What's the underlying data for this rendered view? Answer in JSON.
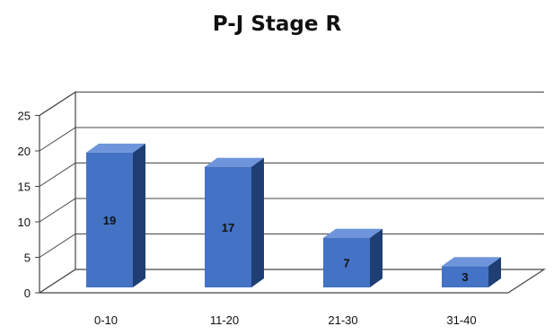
{
  "chart_data": {
    "type": "bar",
    "title": "P-J Stage R",
    "xlabel": "",
    "ylabel": "",
    "categories": [
      "0-10",
      "11-20",
      "21-30",
      "31-40"
    ],
    "values": [
      19,
      17,
      7,
      3
    ],
    "data_labels": [
      "19",
      "17",
      "7",
      "3"
    ],
    "ylim": [
      0,
      25
    ],
    "yticks": [
      "0",
      "5",
      "10",
      "15",
      "20",
      "25"
    ],
    "grid": true,
    "legend": "none",
    "style": "3d-column",
    "colors": {
      "front": "#4472c4",
      "side": "#1f3f74",
      "top": "#6e95dc",
      "grid": "#444444",
      "text": "#111111"
    }
  }
}
